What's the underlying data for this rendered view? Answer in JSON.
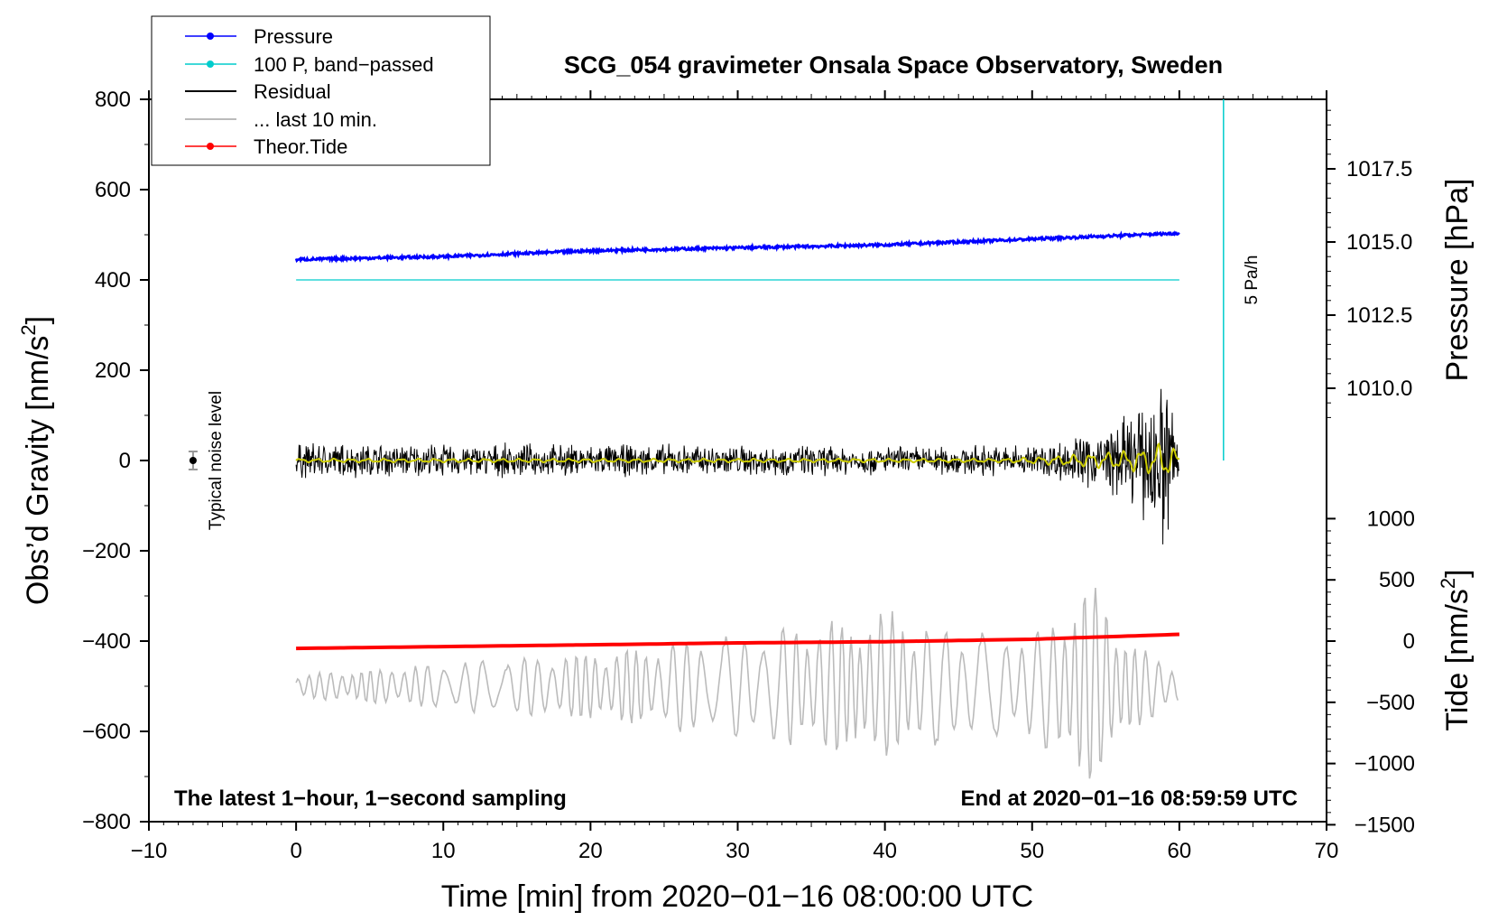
{
  "chart_data": {
    "type": "line",
    "title": "SCG_054 gravimeter Onsala Space Observatory, Sweden",
    "xlabel": "Time [min] from 2020−01−16 08:00:00 UTC",
    "ylabel_left_main": "Obs’d Gravity [nm/s",
    "ylabel_left_sup": "2",
    "ylabel_left_end": "]",
    "ylabel_right_pressure": "Pressure [hPa]",
    "ylabel_right_tide_main": "Tide [nm/s",
    "ylabel_right_tide_sup": "2",
    "ylabel_right_tide_end": "]",
    "xlim": [
      -10,
      70
    ],
    "ylim": [
      -800,
      800
    ],
    "x_ticks": [
      "−10",
      "0",
      "10",
      "20",
      "30",
      "40",
      "50",
      "60",
      "70"
    ],
    "y_ticks": [
      "−800",
      "−600",
      "−400",
      "−200",
      "0",
      "200",
      "400",
      "600",
      "800"
    ],
    "pressure_ticks": [
      "1010.0",
      "1012.5",
      "1015.0",
      "1017.5"
    ],
    "pressure_tick_values": [
      1010.0,
      1012.5,
      1015.0,
      1017.5
    ],
    "tide_ticks": [
      "−1500",
      "−1000",
      "−500",
      "0",
      "500",
      "1000"
    ],
    "tide_tick_values": [
      -1500,
      -1000,
      -500,
      0,
      500,
      1000
    ],
    "legend": [
      {
        "label": "Pressure",
        "color": "#0000ff",
        "marker": true
      },
      {
        "label": "100 P, band−passed",
        "color": "#00cccc",
        "marker": true
      },
      {
        "label": "Residual",
        "color": "#000000",
        "marker": false
      },
      {
        "label": "... last 10 min.",
        "color": "#bbbbbb",
        "marker": false
      },
      {
        "label": "Theor.Tide",
        "color": "#ff0000",
        "marker": true
      }
    ],
    "series": [
      {
        "name": "Pressure",
        "color": "#0000ff",
        "axis": "pressure",
        "x": [
          0,
          10,
          20,
          30,
          40,
          50,
          60
        ],
        "values": [
          1014.4,
          1014.5,
          1014.7,
          1014.8,
          1014.9,
          1015.1,
          1015.3
        ]
      },
      {
        "name": "100 P, band−passed",
        "color": "#00cccc",
        "axis": "gravity",
        "x": [
          0,
          60
        ],
        "values": [
          400,
          400
        ]
      },
      {
        "name": "Residual",
        "color": "#000000",
        "axis": "gravity",
        "amplitude_x": [
          0,
          10,
          20,
          30,
          40,
          50,
          53,
          56,
          58,
          59,
          60
        ],
        "amplitude": [
          45,
          40,
          40,
          40,
          35,
          40,
          60,
          100,
          150,
          250,
          90
        ]
      },
      {
        "name": "Residual (smoothed)",
        "color": "#cccc00",
        "axis": "gravity",
        "amplitude_x": [
          0,
          48,
          52,
          56,
          58,
          59,
          60
        ],
        "amplitude": [
          3,
          3,
          8,
          15,
          22,
          30,
          15
        ]
      },
      {
        "name": "... last 10 min.",
        "color": "#bbbbbb",
        "axis": "gravity",
        "baseline": -500,
        "amplitude_x": [
          0,
          10,
          20,
          30,
          40,
          45,
          50,
          54,
          57,
          60
        ],
        "amplitude": [
          25,
          50,
          75,
          110,
          160,
          120,
          110,
          230,
          90,
          40
        ]
      },
      {
        "name": "Theor.Tide",
        "color": "#ff0000",
        "axis": "tide",
        "x": [
          0,
          10,
          20,
          30,
          40,
          50,
          60
        ],
        "values": [
          -60,
          -45,
          -30,
          -15,
          -5,
          15,
          55
        ]
      }
    ],
    "vertical_marker": {
      "x": 63,
      "from": 0,
      "to": 800,
      "color": "#00cccc",
      "label": "5 Pa/h"
    },
    "noise_marker": {
      "x": -7,
      "y": 0,
      "err": 20,
      "label": "Typical noise level"
    },
    "annotation_left": "The latest 1−hour, 1−second sampling",
    "annotation_right": "End at 2020−01−16 08:59:59 UTC"
  }
}
